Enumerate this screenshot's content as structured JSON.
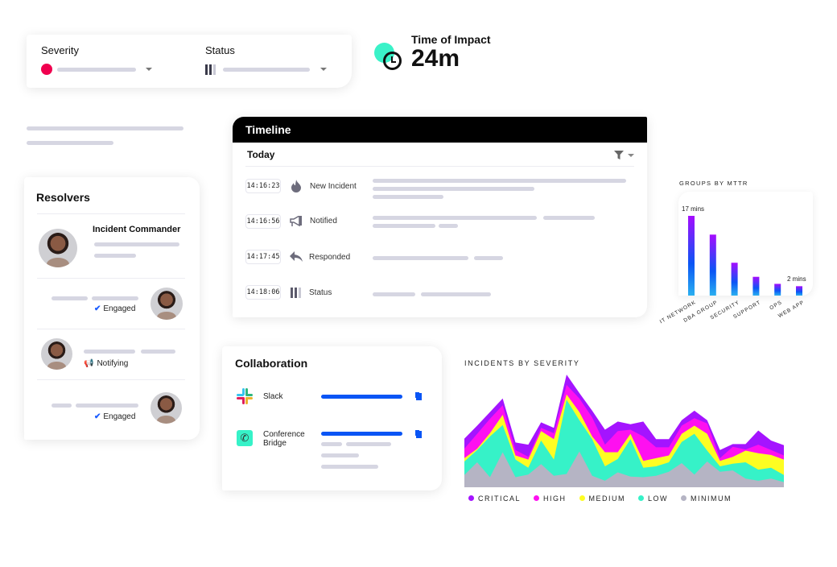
{
  "filters": {
    "severity_label": "Severity",
    "status_label": "Status",
    "severity_color": "#f0004f"
  },
  "time_of_impact": {
    "label": "Time of Impact",
    "value": "24m",
    "accent": "#3af2c8"
  },
  "timeline": {
    "title": "Timeline",
    "day": "Today",
    "events": [
      {
        "time": "14:16:23",
        "icon": "fire-icon",
        "label": "New Incident"
      },
      {
        "time": "14:16:56",
        "icon": "megaphone-icon",
        "label": "Notified"
      },
      {
        "time": "14:17:45",
        "icon": "reply-icon",
        "label": "Responded"
      },
      {
        "time": "14:18:06",
        "icon": "status-bars-icon",
        "label": "Status"
      }
    ]
  },
  "resolvers": {
    "title": "Resolvers",
    "commander_label": "Incident Commander",
    "members": [
      {
        "status": "Engaged",
        "icon": "check-icon"
      },
      {
        "status": "Notifying",
        "icon": "megaphone-icon"
      },
      {
        "status": "Engaged",
        "icon": "check-icon"
      }
    ]
  },
  "collaboration": {
    "title": "Collaboration",
    "items": [
      {
        "name": "Slack",
        "icon": "slack-icon"
      },
      {
        "name": "Conference Bridge",
        "icon": "phone-icon"
      }
    ],
    "accent": "#0a55f5"
  },
  "chart_data": [
    {
      "type": "bar",
      "title": "GROUPS BY MTTR",
      "categories": [
        "IT NETWORK",
        "DBA GROUP",
        "SECURITY",
        "SUPPORT",
        "OPS",
        "WEB APP"
      ],
      "values": [
        17,
        13,
        7,
        4,
        2.5,
        2
      ],
      "unit": "mins",
      "data_labels": [
        "17 mins",
        "",
        "",
        "",
        "",
        "2 mins"
      ],
      "colors": [
        "#a50cff",
        "#0a55f5",
        "#2ab0f0"
      ],
      "grid": false
    },
    {
      "type": "area",
      "stacked": true,
      "title": "INCIDENTS BY SEVERITY",
      "grid": false,
      "legend": "bottom",
      "series": [
        {
          "name": "MINIMUM",
          "color": "#b5b4c4",
          "values": [
            45,
            92,
            37,
            129,
            37,
            47,
            85,
            42,
            49,
            132,
            42,
            24,
            55,
            39,
            37,
            42,
            57,
            89,
            47,
            95,
            57,
            62,
            32,
            24,
            32,
            19
          ]
        },
        {
          "name": "LOW",
          "color": "#36f2c8",
          "values": [
            50,
            45,
            150,
            100,
            65,
            25,
            87,
            60,
            273,
            115,
            135,
            53,
            49,
            138,
            35,
            35,
            35,
            78,
            150,
            40,
            20,
            25,
            60,
            41,
            40,
            26
          ]
        },
        {
          "name": "MEDIUM",
          "color": "#fdfd22",
          "values": [
            12,
            5,
            12,
            38,
            15,
            30,
            35,
            75,
            20,
            30,
            10,
            52,
            25,
            20,
            25,
            30,
            25,
            30,
            30,
            62,
            20,
            25,
            43,
            60,
            47,
            57
          ]
        },
        {
          "name": "HIGH",
          "color": "#fe10f0",
          "values": [
            35,
            55,
            53,
            35,
            20,
            10,
            12,
            22,
            35,
            50,
            70,
            28,
            78,
            15,
            90,
            40,
            30,
            30,
            27,
            38,
            10,
            37,
            4,
            32,
            18,
            15
          ]
        },
        {
          "name": "CRITICAL",
          "color": "#a414ff",
          "values": [
            37,
            30,
            25,
            25,
            28,
            45,
            20,
            20,
            38,
            20,
            25,
            55,
            35,
            20,
            55,
            30,
            30,
            20,
            28,
            12,
            30,
            10,
            20,
            52,
            35,
            38
          ]
        }
      ],
      "legend_order": [
        "CRITICAL",
        "HIGH",
        "MEDIUM",
        "LOW",
        "MINIMUM"
      ]
    }
  ]
}
